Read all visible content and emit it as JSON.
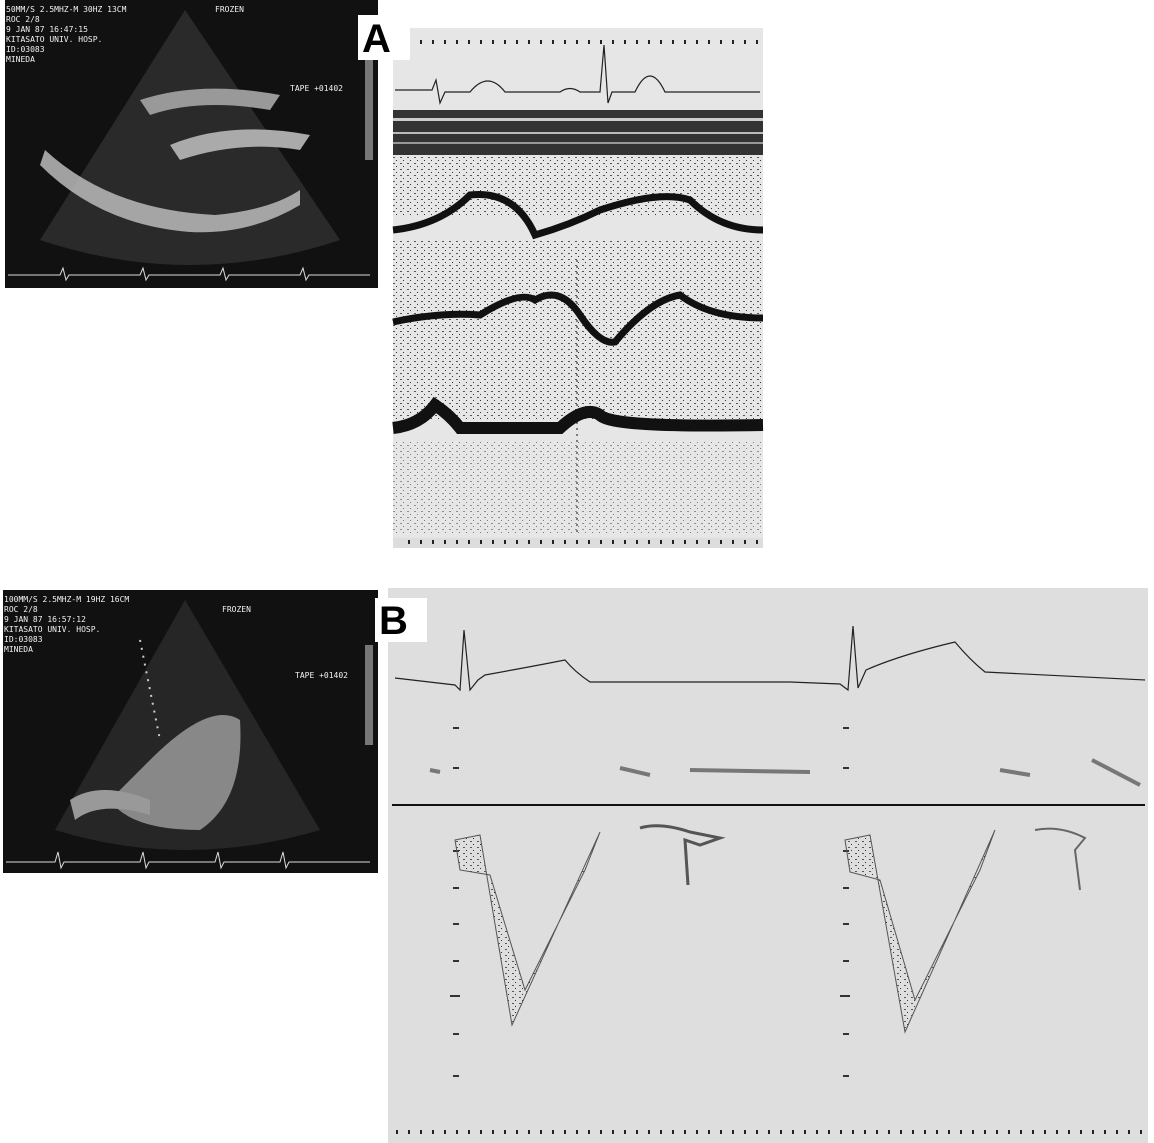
{
  "panel_a": {
    "label": "A",
    "echo_text": {
      "settings": "50MM/S 2.5MHZ-M 30HZ 13CM",
      "status": "FROZEN",
      "roc": "ROC 2/8",
      "date": "9 JAN 87   16:47:15",
      "hospital": "KITASATO UNIV. HOSP.",
      "id": "ID:03083",
      "name": "MINEDA",
      "tape": "TAPE +01402"
    }
  },
  "panel_b": {
    "label": "B",
    "echo_text": {
      "settings": "100MM/S 2.5MHZ-M 19HZ 16CM",
      "status": "FROZEN",
      "roc": "ROC 2/8",
      "date": "9 JAN 87   16:57:12",
      "hospital": "KITASATO UNIV. HOSP.",
      "id": "ID:03083",
      "name": "MINEDA",
      "tape": "TAPE +01402"
    }
  }
}
